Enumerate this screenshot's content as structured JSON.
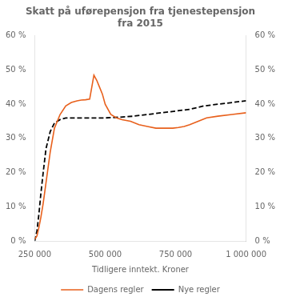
{
  "chart_data": {
    "type": "line",
    "title": "Skatt på uførepensjon fra tjenestepensjon\nfra 2015",
    "x_label": "Tidligere inntekt. Kroner",
    "xlim": [
      250000,
      1000000
    ],
    "xticks": [
      {
        "value": 250000,
        "label": "250 000"
      },
      {
        "value": 500000,
        "label": "500 000"
      },
      {
        "value": 750000,
        "label": "750 000"
      },
      {
        "value": 1000000,
        "label": "1 000 000"
      }
    ],
    "ylim": [
      0,
      60
    ],
    "yticks": [
      {
        "value": 0,
        "label": "0 %"
      },
      {
        "value": 10,
        "label": "10 %"
      },
      {
        "value": 20,
        "label": "20 %"
      },
      {
        "value": 30,
        "label": "30 %"
      },
      {
        "value": 40,
        "label": "40 %"
      },
      {
        "value": 50,
        "label": "50 %"
      },
      {
        "value": 60,
        "label": "60 %"
      }
    ],
    "y2lim": [
      0,
      60
    ],
    "y2ticks": [
      {
        "value": 0,
        "label": "0 %"
      },
      {
        "value": 10,
        "label": "10 %"
      },
      {
        "value": 20,
        "label": "20 %"
      },
      {
        "value": 30,
        "label": "30 %"
      },
      {
        "value": 40,
        "label": "40 %"
      },
      {
        "value": 50,
        "label": "50 %"
      },
      {
        "value": 60,
        "label": "60 %"
      }
    ],
    "grid": false,
    "legend": "bottom",
    "series": [
      {
        "name": "Dagens regler",
        "color": "#e8601c",
        "line_style": "solid",
        "x": [
          250000,
          258000,
          265000,
          272000,
          280000,
          290000,
          305000,
          320000,
          340000,
          360000,
          380000,
          400000,
          415000,
          430000,
          445000,
          460000,
          470000,
          480000,
          490000,
          500000,
          520000,
          540000,
          560000,
          590000,
          620000,
          650000,
          680000,
          710000,
          740000,
          760000,
          780000,
          800000,
          830000,
          860000,
          900000,
          950000,
          1000000
        ],
        "values": [
          0.5,
          1.5,
          4,
          7,
          11,
          17,
          26,
          33,
          37,
          39.5,
          40.5,
          41,
          41.2,
          41.3,
          41.5,
          48.5,
          47,
          45,
          43,
          40,
          37,
          36,
          35.5,
          35,
          34,
          33.5,
          33,
          33,
          33,
          33.2,
          33.5,
          34,
          35,
          36,
          36.5,
          37,
          37.5
        ]
      },
      {
        "name": "Nye regler",
        "color": "#000000",
        "line_style": "dashed",
        "x": [
          250000,
          258000,
          265000,
          272000,
          280000,
          290000,
          305000,
          320000,
          340000,
          360000,
          380000,
          400000,
          450000,
          500000,
          550000,
          600000,
          650000,
          700000,
          750000,
          800000,
          850000,
          900000,
          950000,
          1000000
        ],
        "values": [
          0,
          3,
          8,
          14,
          20,
          27,
          32,
          34.5,
          35.5,
          36,
          36,
          36,
          36,
          36,
          36.2,
          36.5,
          37,
          37.5,
          38,
          38.5,
          39.5,
          40,
          40.5,
          41
        ]
      }
    ]
  }
}
